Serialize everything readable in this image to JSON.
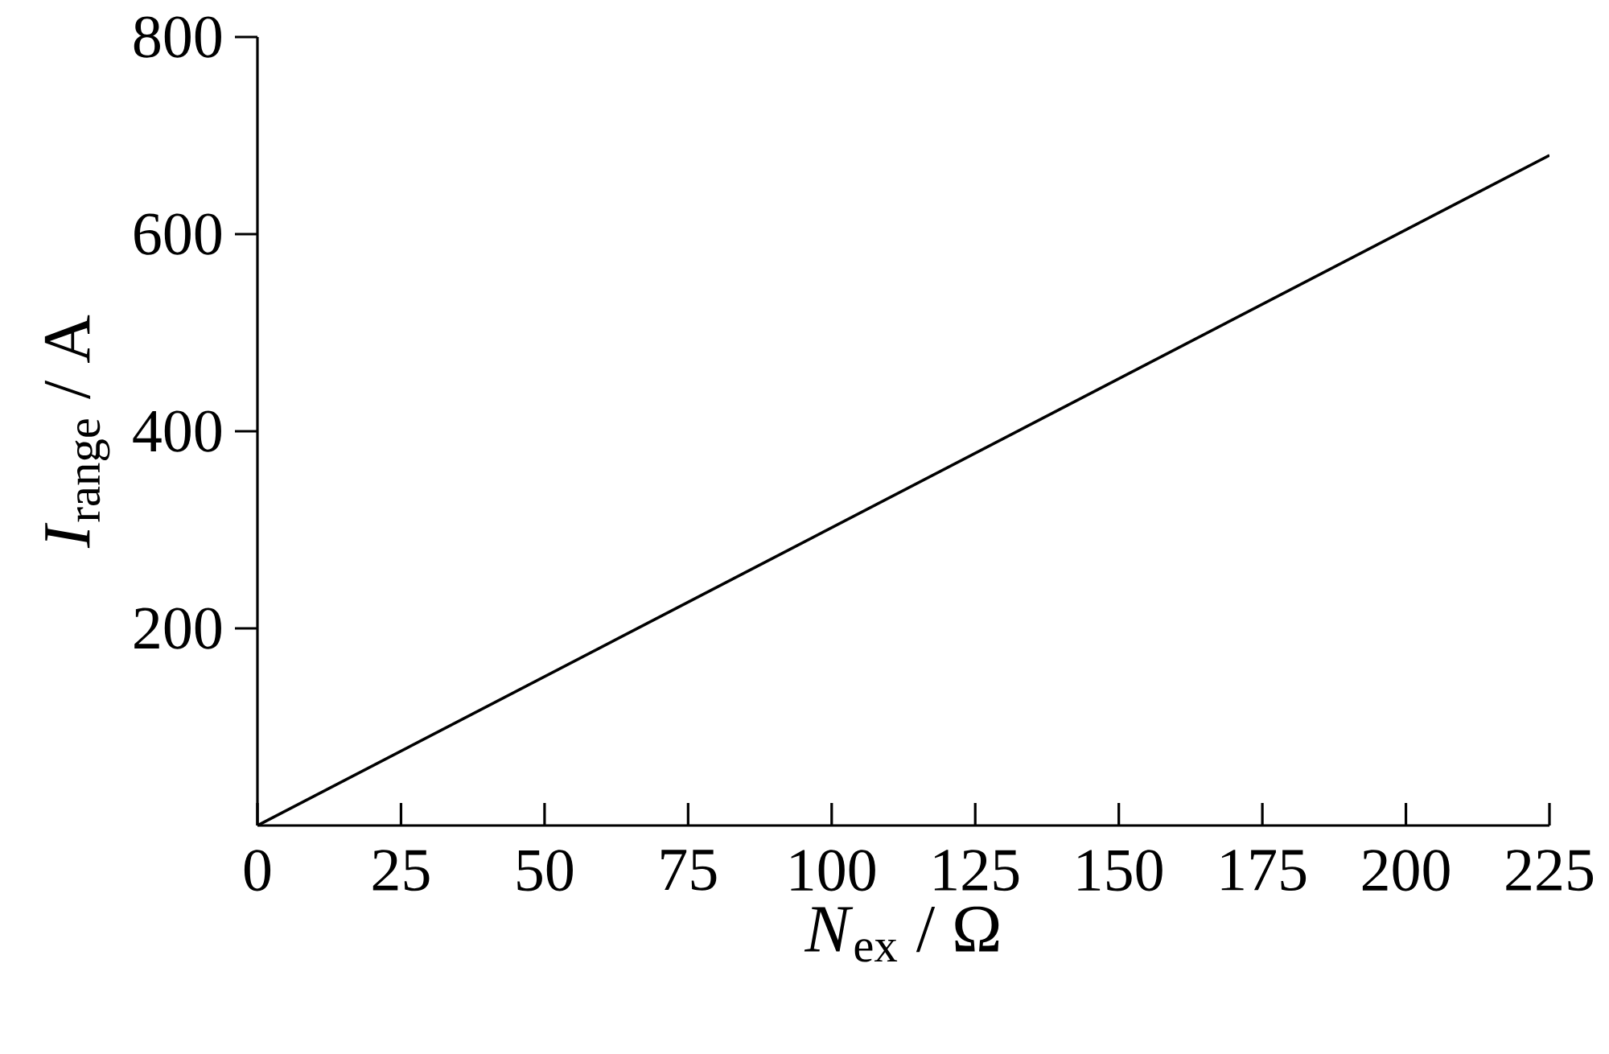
{
  "chart_data": {
    "type": "line",
    "xlabel": "*N*$_{ex}$ / Ω",
    "ylabel": "*I*$_{range}$ / A",
    "x": [
      0,
      225
    ],
    "series": [
      {
        "color": "#000000",
        "values": [
          0,
          680
        ]
      }
    ],
    "xlim": [
      0,
      225
    ],
    "ylim": [
      0,
      800
    ],
    "xticks": [
      0,
      25,
      50,
      75,
      100,
      125,
      150,
      175,
      200,
      225
    ],
    "yticks": [
      200,
      400,
      600,
      800
    ],
    "line_style": "solid"
  }
}
